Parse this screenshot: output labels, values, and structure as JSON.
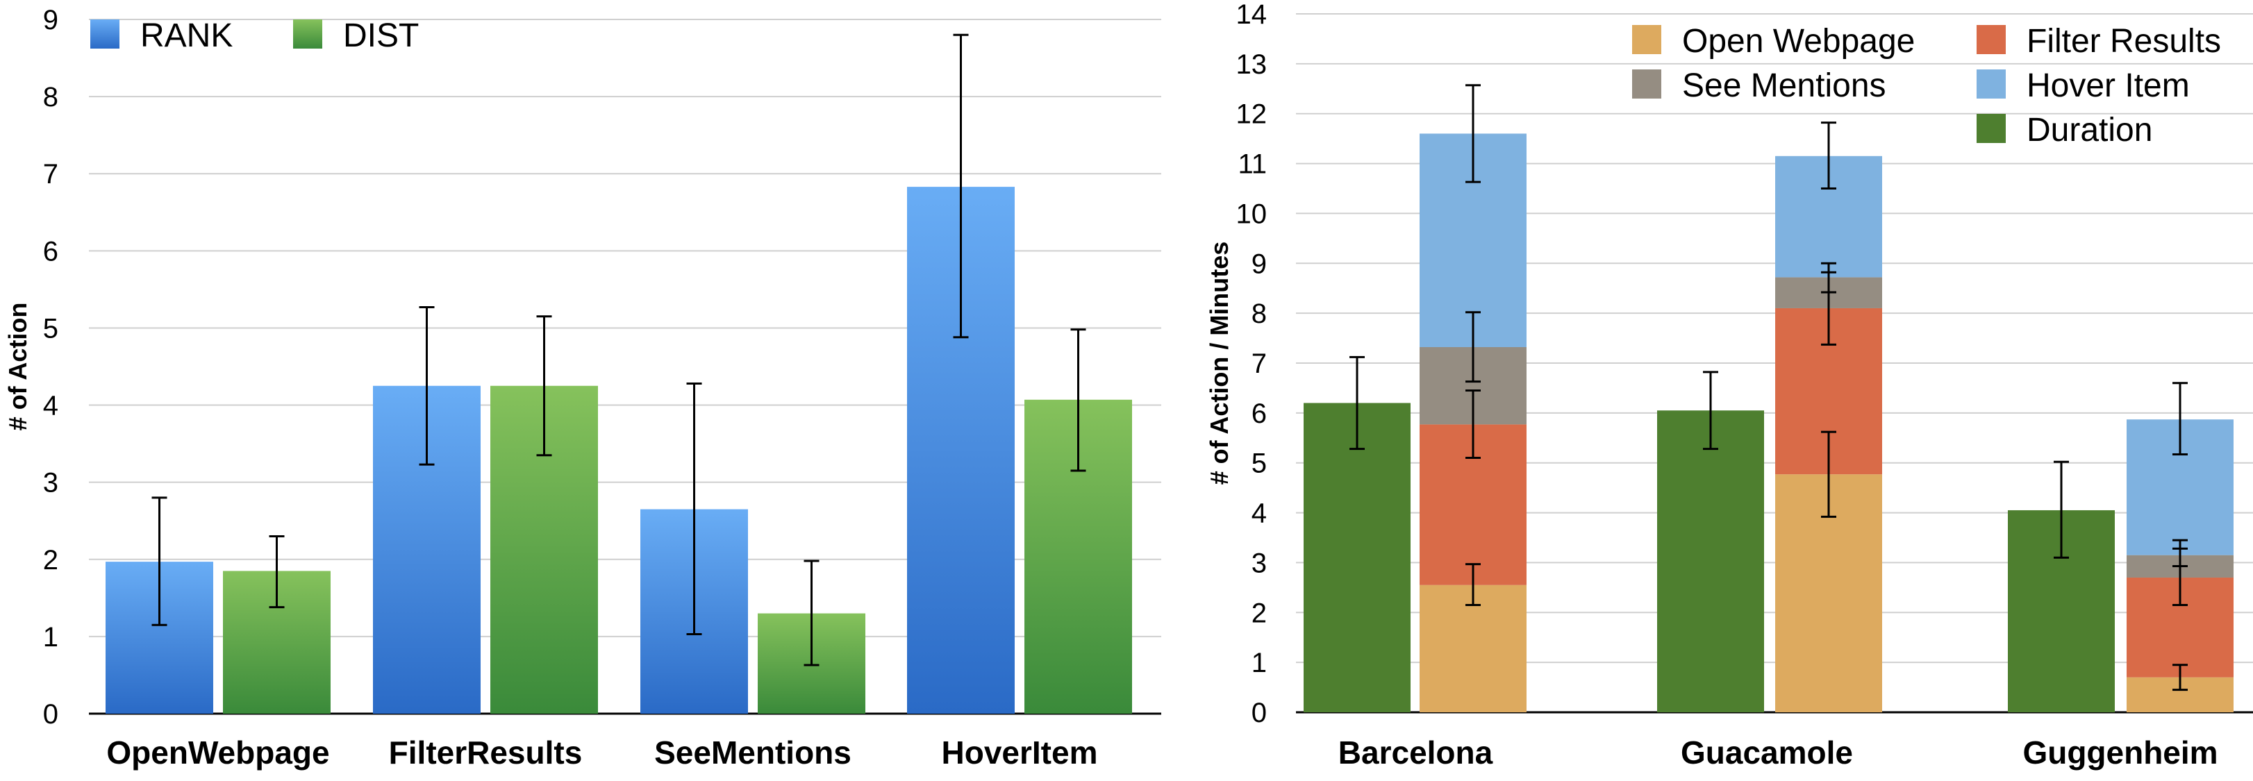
{
  "chart_data": [
    {
      "type": "bar",
      "categories": [
        "OpenWebpage",
        "FilterResults",
        "SeeMentions",
        "HoverItem"
      ],
      "series": [
        {
          "name": "RANK",
          "values": [
            1.97,
            4.25,
            2.65,
            6.83
          ],
          "error_low": [
            1.15,
            3.23,
            1.03,
            4.88
          ],
          "error_high": [
            2.8,
            5.27,
            4.28,
            8.8
          ]
        },
        {
          "name": "DIST",
          "values": [
            1.85,
            4.25,
            1.3,
            4.07
          ],
          "error_low": [
            1.38,
            3.35,
            0.63,
            3.15
          ],
          "error_high": [
            2.3,
            5.15,
            1.98,
            4.98
          ]
        }
      ],
      "title": "",
      "xlabel": "",
      "ylabel": "# of Action",
      "ylim": [
        0,
        9
      ],
      "yticks": [
        "0",
        "1",
        "2",
        "3",
        "4",
        "5",
        "6",
        "7",
        "8",
        "9"
      ],
      "grid": true,
      "legend": "top-left",
      "colors": {
        "RANK": "#3d85dc",
        "DIST": "#5fa84a"
      }
    },
    {
      "type": "bar",
      "stacked": true,
      "categories": [
        "Barcelona",
        "Guacamole",
        "Guggenheim"
      ],
      "series": [
        {
          "name": "Duration",
          "stack": "duration",
          "values": [
            6.2,
            6.05,
            4.05
          ],
          "error_low": [
            5.28,
            5.28,
            3.1
          ],
          "error_high": [
            7.12,
            6.82,
            5.02
          ]
        },
        {
          "name": "Open Webpage",
          "stack": "actions",
          "values": [
            2.55,
            4.77,
            0.7
          ],
          "error_low": [
            2.15,
            3.92,
            0.45
          ],
          "error_high": [
            2.97,
            5.62,
            0.95
          ]
        },
        {
          "name": "Filter Results",
          "stack": "actions",
          "values": [
            3.22,
            3.33,
            2.0
          ],
          "error_low": [
            5.1,
            7.37,
            2.15
          ],
          "error_high": [
            6.45,
            8.82,
            3.28
          ]
        },
        {
          "name": "See Mentions",
          "stack": "actions",
          "values": [
            1.55,
            0.62,
            0.45
          ],
          "error_low": [
            6.63,
            8.42,
            2.93
          ],
          "error_high": [
            8.02,
            9.0,
            3.45
          ]
        },
        {
          "name": "Hover Item",
          "stack": "actions",
          "values": [
            4.28,
            2.43,
            2.72
          ],
          "error_low": [
            10.63,
            10.5,
            5.17
          ],
          "error_high": [
            12.57,
            11.82,
            6.6
          ]
        }
      ],
      "title": "",
      "xlabel": "",
      "ylabel": "# of Action / Minutes",
      "ylim": [
        0,
        14
      ],
      "yticks": [
        "0",
        "1",
        "2",
        "3",
        "4",
        "5",
        "6",
        "7",
        "8",
        "9",
        "10",
        "11",
        "12",
        "13",
        "14"
      ],
      "grid": true,
      "legend": "top-right",
      "legend_order": [
        "Open Webpage",
        "Filter Results",
        "See Mentions",
        "Hover Item",
        "Duration"
      ],
      "colors": {
        "Duration": "#4e7f2f",
        "Open Webpage": "#ddaa5f",
        "Filter Results": "#d96b48",
        "See Mentions": "#958d82",
        "Hover Item": "#7fb2e0"
      }
    }
  ]
}
